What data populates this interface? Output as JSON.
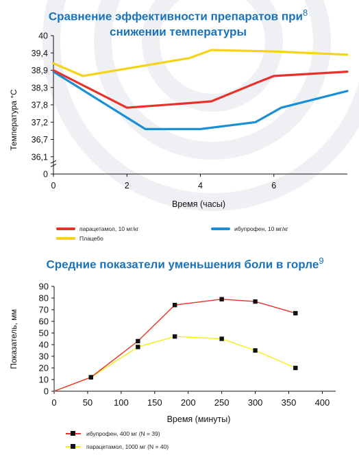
{
  "chart1_title": "Сравнение эффективности препаратов при",
  "chart1_title_line2": "снижении температуры",
  "chart1_ref": "8",
  "chart2_title": "Средние показатели уменьшения боли в горле",
  "chart2_ref": "9",
  "colors": {
    "title": "#1a73b9",
    "red": "#e8312a",
    "blue": "#1b8fd6",
    "yellow": "#f5d31a"
  },
  "chart_data": [
    {
      "type": "line",
      "title": "Сравнение эффективности препаратов при снижении температуры",
      "xlabel": "Время (часы)",
      "ylabel": "Температура °С",
      "xlim": [
        0,
        8
      ],
      "x_ticks": [
        "0",
        "2",
        "4",
        "6"
      ],
      "y_ticks": [
        "0",
        "36,1",
        "36,7",
        "37,2",
        "37,8",
        "38,3",
        "38,9",
        "39,4",
        "40"
      ],
      "grid": false,
      "series": [
        {
          "name": "парацетамол, 10 мг/кг",
          "color": "#e8312a",
          "x": [
            0,
            2,
            3.7,
            4.3,
            5.6,
            6,
            8
          ],
          "y": [
            38.9,
            37.7,
            37.85,
            37.9,
            38.5,
            38.7,
            38.85
          ]
        },
        {
          "name": "ибупрофен, 10 мг/кг",
          "color": "#1b8fd6",
          "x": [
            0,
            2.5,
            3,
            4,
            5.5,
            6.2,
            8
          ],
          "y": [
            38.85,
            37.0,
            37.0,
            37.0,
            37.2,
            37.7,
            38.2
          ]
        },
        {
          "name": "Плацебо",
          "color": "#f5d31a",
          "x": [
            0,
            0.8,
            3.7,
            4.3,
            6,
            8
          ],
          "y": [
            39.1,
            38.7,
            39.25,
            39.5,
            39.45,
            39.35
          ]
        }
      ]
    },
    {
      "type": "line",
      "title": "Средние показатели уменьшения боли в горле",
      "xlabel": "Время (минуты)",
      "ylabel": "Показатель, мм",
      "xlim": [
        0,
        420
      ],
      "ylim": [
        0,
        90
      ],
      "x_ticks": [
        "0",
        "50",
        "100",
        "150",
        "200",
        "250",
        "300",
        "350",
        "400"
      ],
      "y_ticks": [
        "0",
        "10",
        "20",
        "30",
        "40",
        "50",
        "60",
        "70",
        "80",
        "90"
      ],
      "grid": false,
      "series": [
        {
          "name": "ибупрофен, 400 мг (N = 39)",
          "color": "#e8312a",
          "x": [
            0,
            55,
            125,
            180,
            250,
            300,
            360
          ],
          "y": [
            0,
            12,
            43,
            74,
            79,
            77,
            67
          ]
        },
        {
          "name": "парацетамол, 1000 мг (N = 40)",
          "color": "#f5ef14",
          "x": [
            0,
            55,
            125,
            180,
            250,
            300,
            360
          ],
          "y": [
            0,
            12,
            38,
            47,
            45,
            35,
            20
          ]
        }
      ]
    }
  ]
}
